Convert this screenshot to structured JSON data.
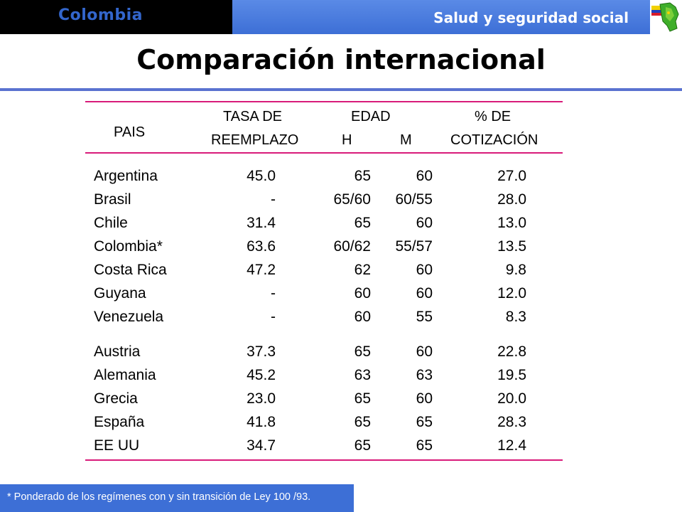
{
  "header": {
    "country": "Colombia",
    "section": "Salud y seguridad social"
  },
  "title": "Comparación internacional",
  "table": {
    "headers": {
      "pais": "PAIS",
      "tasa_line1": "TASA DE",
      "tasa_line2": "REEMPLAZO",
      "edad": "EDAD",
      "edad_h": "H",
      "edad_m": "M",
      "cot_line1": "% DE",
      "cot_line2": "COTIZACIÓN"
    },
    "rows": [
      {
        "pais": "Argentina",
        "tasa": "45.0",
        "h": "65",
        "m": "60",
        "cot": "27.0"
      },
      {
        "pais": "Brasil",
        "tasa": "-",
        "h": "65/60",
        "m": "60/55",
        "cot": "28.0"
      },
      {
        "pais": "Chile",
        "tasa": "31.4",
        "h": "65",
        "m": "60",
        "cot": "13.0"
      },
      {
        "pais": "Colombia*",
        "tasa": "63.6",
        "h": "60/62",
        "m": "55/57",
        "cot": "13.5"
      },
      {
        "pais": "Costa Rica",
        "tasa": "47.2",
        "h": "62",
        "m": "60",
        "cot": "9.8"
      },
      {
        "pais": "Guyana",
        "tasa": "-",
        "h": "60",
        "m": "60",
        "cot": "12.0"
      },
      {
        "pais": "Venezuela",
        "tasa": "-",
        "h": "60",
        "m": "55",
        "cot": "8.3"
      },
      {
        "pais": "Austria",
        "tasa": "37.3",
        "h": "65",
        "m": "60",
        "cot": "22.8"
      },
      {
        "pais": "Alemania",
        "tasa": "45.2",
        "h": "63",
        "m": "63",
        "cot": "19.5"
      },
      {
        "pais": "Grecia",
        "tasa": "23.0",
        "h": "65",
        "m": "60",
        "cot": "20.0"
      },
      {
        "pais": "España",
        "tasa": "41.8",
        "h": "65",
        "m": "65",
        "cot": "28.3"
      },
      {
        "pais": "EE UU",
        "tasa": "34.7",
        "h": "65",
        "m": "65",
        "cot": "12.4"
      }
    ]
  },
  "footnote": "* Ponderado de los regímenes con y sin transición de Ley 100 /93.",
  "icons": {
    "flag": "colombia-map-flag-icon"
  },
  "colors": {
    "header_blue": "#3d6fd6",
    "title_rule": "#5a72d0",
    "table_rule": "#d81b7a",
    "highlight": "#e0197a"
  }
}
